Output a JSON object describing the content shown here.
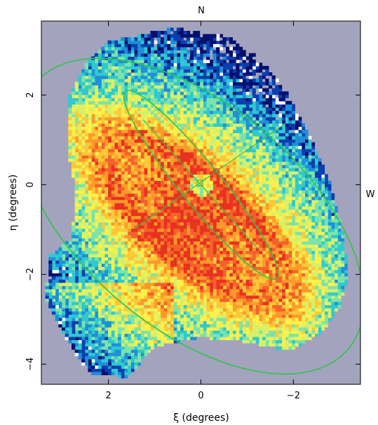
{
  "chart_data": {
    "type": "heatmap",
    "title": "N",
    "right_label": "W",
    "xlabel": "ξ (degrees)",
    "ylabel": "η (degrees)",
    "xlim": [
      3.45,
      -3.45
    ],
    "ylim": [
      -4.45,
      3.65
    ],
    "x_ticks": [
      2,
      0,
      -2
    ],
    "x_tick_labels": [
      "2",
      "0",
      "−2"
    ],
    "y_ticks": [
      2,
      0,
      -2,
      -4
    ],
    "y_tick_labels": [
      "2",
      "0",
      "−2",
      "−4"
    ],
    "grid": false,
    "background_color": "#a3a3bd",
    "colormap": [
      "#001070",
      "#0a3fb0",
      "#1f8fd8",
      "#2fc9cf",
      "#7de3a8",
      "#d6f06a",
      "#fff04a",
      "#ffc838",
      "#ff9a2a",
      "#f4622a",
      "#e8321f"
    ],
    "overlay_color": "#2ec44a",
    "ellipses": [
      {
        "name": "outer",
        "center": [
          0.2,
          -0.7
        ],
        "semi_major": 4.5,
        "semi_minor": 2.45,
        "angle_deg": 42
      },
      {
        "name": "inner",
        "center": [
          0.0,
          0.0
        ],
        "semi_major": 2.65,
        "semi_minor": 0.45,
        "angle_deg": 52
      }
    ],
    "axis_lines": [
      {
        "from": [
          1.25,
          1.45
        ],
        "to": [
          -1.25,
          -1.45
        ]
      },
      {
        "from": [
          1.4,
          -0.95
        ],
        "to": [
          -1.8,
          1.35
        ]
      }
    ]
  }
}
